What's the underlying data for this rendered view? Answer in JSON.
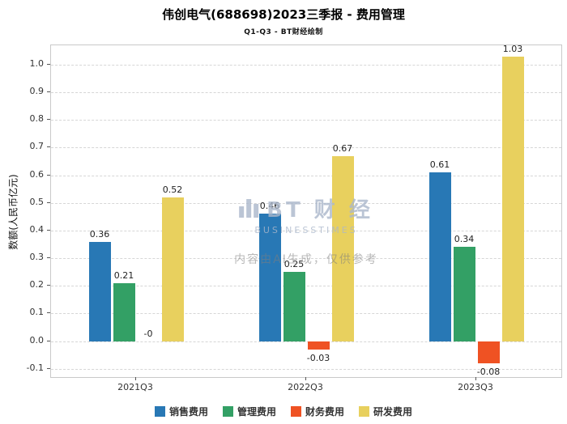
{
  "header": {
    "title": "伟创电气(688698)2023三季报 - 费用管理",
    "subtitle": "Q1-Q3 - BT财经绘制"
  },
  "chart_data": {
    "type": "bar",
    "title": "伟创电气(688698)2023三季报 - 费用管理",
    "subtitle": "Q1-Q3 - BT财经绘制",
    "ylabel": "数额(人民币亿元)",
    "xlabel": "",
    "categories": [
      "2021Q3",
      "2022Q3",
      "2023Q3"
    ],
    "series": [
      {
        "key": "sales",
        "name": "销售费用",
        "color": "#2878b5",
        "values": [
          0.36,
          0.46,
          0.61
        ],
        "labels": [
          "0.36",
          "0.46",
          "0.61"
        ]
      },
      {
        "key": "admin",
        "name": "管理费用",
        "color": "#33a065",
        "values": [
          0.21,
          0.25,
          0.34
        ],
        "labels": [
          "0.21",
          "0.25",
          "0.34"
        ]
      },
      {
        "key": "finance",
        "name": "财务费用",
        "color": "#ef5223",
        "values": [
          0,
          -0.03,
          -0.08
        ],
        "labels": [
          "-0",
          "-0.03",
          "-0.08"
        ]
      },
      {
        "key": "rd",
        "name": "研发费用",
        "color": "#e8d05e",
        "values": [
          0.52,
          0.67,
          1.03
        ],
        "labels": [
          "0.52",
          "0.67",
          "1.03"
        ]
      }
    ],
    "ylim": [
      -0.13,
      1.07
    ],
    "yticks": [
      -0.1,
      0,
      0.1,
      0.2,
      0.3,
      0.4,
      0.5,
      0.6,
      0.7,
      0.8,
      0.9,
      1.0
    ],
    "ytick_labels": [
      "-0.1",
      "0.0",
      "0.1",
      "0.2",
      "0.3",
      "0.4",
      "0.5",
      "0.6",
      "0.7",
      "0.8",
      "0.9",
      "1.0"
    ],
    "grid": true,
    "legend_position": "bottom"
  },
  "watermark": {
    "logo_text": "BT 财 经",
    "logo_sub": "BUSINESSTIMES",
    "disclaimer": "内容由AI生成，仅供参考"
  }
}
